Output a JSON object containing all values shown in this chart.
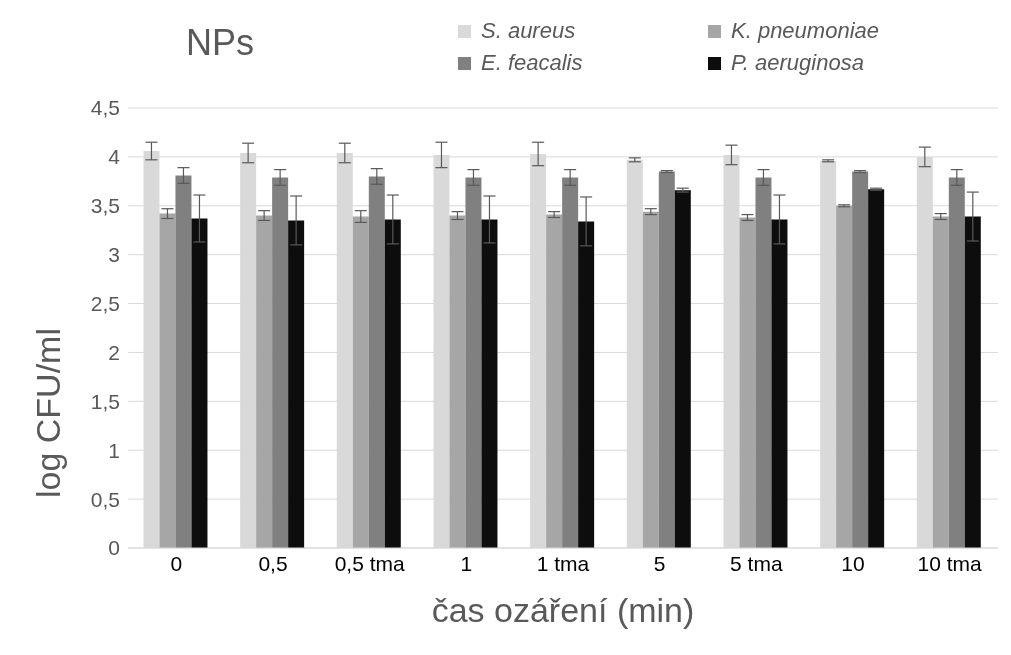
{
  "chart_data": {
    "type": "bar",
    "title": "NPs",
    "xlabel": "čas ozáření (min)",
    "ylabel": "log CFU/ml",
    "categories": [
      "0",
      "0,5",
      "0,5 tma",
      "1",
      "1 tma",
      "5",
      "5 tma",
      "10",
      "10 tma"
    ],
    "series": [
      {
        "name": "S. aureus",
        "color": "#d9d9d9",
        "values": [
          4.06,
          4.04,
          4.04,
          4.02,
          4.03,
          3.97,
          4.02,
          3.96,
          4.0
        ],
        "errors": [
          0.09,
          0.1,
          0.1,
          0.13,
          0.12,
          0.02,
          0.1,
          0.01,
          0.1
        ]
      },
      {
        "name": "K. pneumoniae",
        "color": "#a6a6a6",
        "values": [
          3.42,
          3.4,
          3.39,
          3.4,
          3.41,
          3.44,
          3.38,
          3.5,
          3.39
        ],
        "errors": [
          0.05,
          0.05,
          0.06,
          0.04,
          0.03,
          0.03,
          0.03,
          0.01,
          0.03
        ]
      },
      {
        "name": "E. feacalis",
        "color": "#808080",
        "values": [
          3.81,
          3.79,
          3.8,
          3.79,
          3.79,
          3.85,
          3.79,
          3.85,
          3.79
        ],
        "errors": [
          0.08,
          0.08,
          0.08,
          0.08,
          0.08,
          0.01,
          0.08,
          0.01,
          0.08
        ]
      },
      {
        "name": "P. aeruginosa",
        "color": "#0d0d0d",
        "values": [
          3.37,
          3.35,
          3.36,
          3.36,
          3.34,
          3.66,
          3.36,
          3.67,
          3.39
        ],
        "errors": [
          0.24,
          0.25,
          0.25,
          0.24,
          0.25,
          0.02,
          0.25,
          0.01,
          0.25
        ]
      }
    ],
    "ylim": [
      0,
      4.5
    ],
    "yticks": [
      0,
      {
        "value": 0.5,
        "label": "0,5"
      },
      1,
      {
        "value": 1.5,
        "label": "1,5"
      },
      2,
      {
        "value": 2.5,
        "label": "2,5"
      },
      3,
      {
        "value": 3.5,
        "label": "3,5"
      },
      4,
      {
        "value": 4.5,
        "label": "4,5"
      }
    ],
    "grid": "y",
    "legend": "top right"
  }
}
